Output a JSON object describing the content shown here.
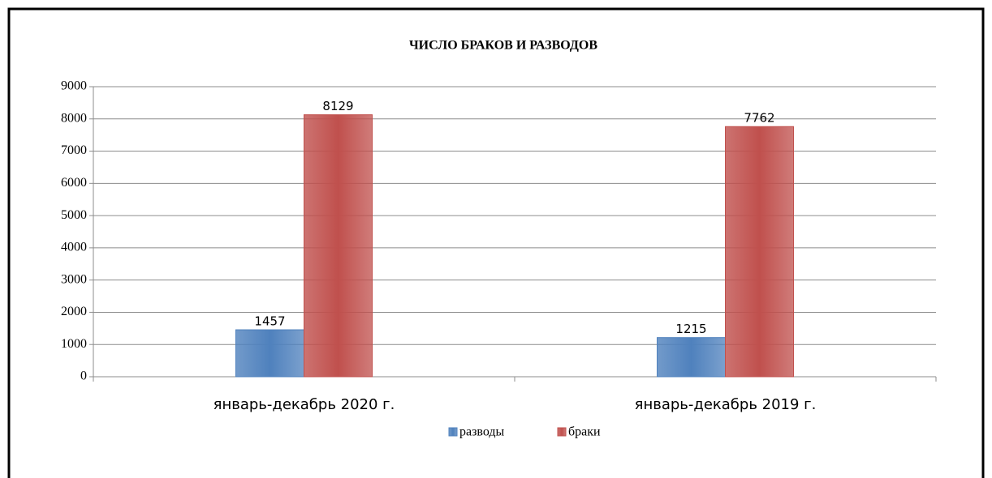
{
  "chart_data": {
    "type": "bar",
    "title": "ЧИСЛО БРАКОВ И РАЗВОДОВ",
    "categories": [
      "январь-декабрь 2020 г.",
      "январь-декабрь 2019 г."
    ],
    "series": [
      {
        "name": "разводы",
        "color": "#4f81bd",
        "values": [
          1457,
          1215
        ]
      },
      {
        "name": "браки",
        "color": "#c0504d",
        "values": [
          8129,
          7762
        ]
      }
    ],
    "ylim": [
      0,
      9000
    ],
    "yticks": [
      0,
      1000,
      2000,
      3000,
      4000,
      5000,
      6000,
      7000,
      8000,
      9000
    ],
    "grid": true,
    "legend": "bottom"
  }
}
